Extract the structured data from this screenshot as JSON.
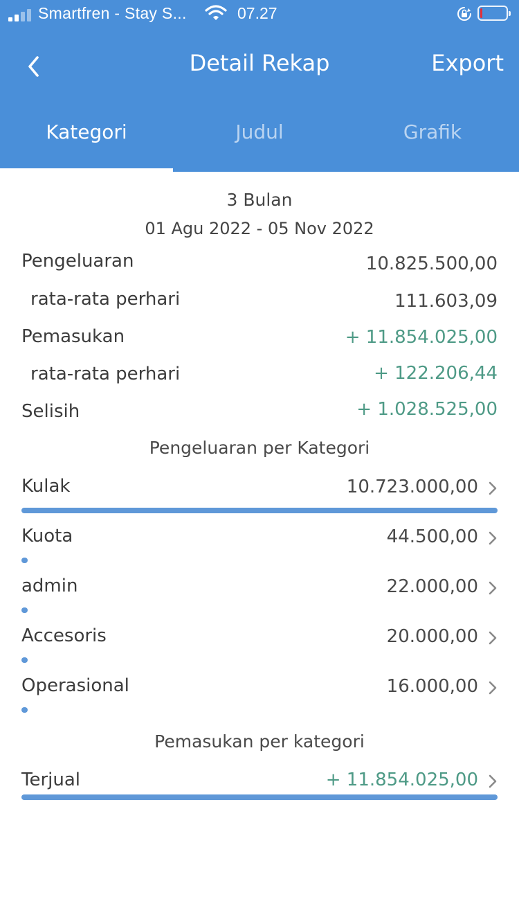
{
  "status_bar": {
    "carrier": "Smartfren - Stay S...",
    "time": "07.27"
  },
  "header": {
    "title": "Detail Rekap",
    "export_label": "Export",
    "back_icon": "chevron-left-icon"
  },
  "tabs": [
    {
      "label": "Kategori",
      "active": true
    },
    {
      "label": "Judul",
      "active": false
    },
    {
      "label": "Grafik",
      "active": false
    }
  ],
  "summary": {
    "period": "3 Bulan",
    "range": "01 Agu 2022 - 05 Nov 2022",
    "rows": [
      {
        "label": "Pengeluaran",
        "value": "10.825.500,00"
      },
      {
        "label": "rata-rata perhari",
        "value": "111.603,09"
      },
      {
        "label": "Pemasukan",
        "value": "+ 11.854.025,00"
      },
      {
        "label": "rata-rata perhari",
        "value": "+ 122.206,44"
      },
      {
        "label": "Selisih",
        "value": "+ 1.028.525,00"
      }
    ]
  },
  "expense_section": {
    "title": "Pengeluaran per Kategori",
    "items": [
      {
        "label": "Kulak",
        "value": "10.723.000,00",
        "fraction": 1.0
      },
      {
        "label": "Kuota",
        "value": "44.500,00",
        "fraction": 0.0041
      },
      {
        "label": "admin",
        "value": "22.000,00",
        "fraction": 0.0021
      },
      {
        "label": "Accesoris",
        "value": "20.000,00",
        "fraction": 0.0019
      },
      {
        "label": "Operasional",
        "value": "16.000,00",
        "fraction": 0.0015
      }
    ]
  },
  "income_section": {
    "title": "Pemasukan per kategori",
    "items": [
      {
        "label": "Terjual",
        "value": "+ 11.854.025,00",
        "fraction": 1.0
      }
    ]
  },
  "colors": {
    "header_bg": "#4a8fd9",
    "positive": "#4e9a86",
    "bar": "#5f98d8"
  }
}
